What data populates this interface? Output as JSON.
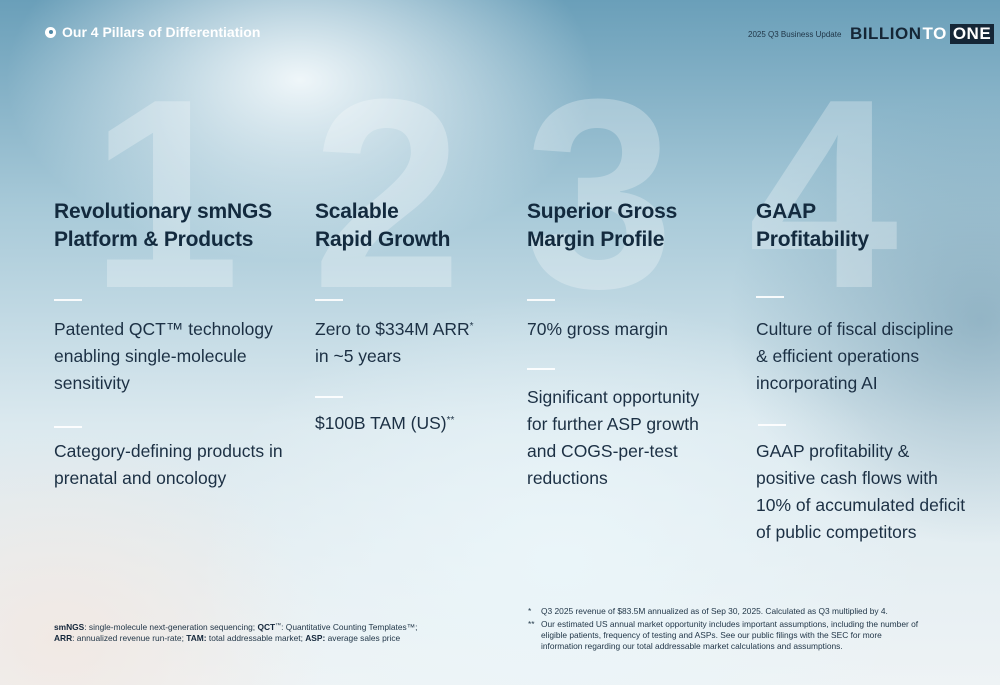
{
  "header": {
    "section_title": "Our 4 Pillars of Differentiation",
    "business_update": "2025 Q3 Business Update",
    "logo": {
      "part1": "BILLION",
      "part2": "TO",
      "part3": "ONE"
    }
  },
  "pillars": [
    {
      "number": "1",
      "heading": [
        "Revolutionary smNGS",
        "Platform & Products"
      ],
      "points": [
        {
          "lines": [
            "Patented QCT™ technology",
            "enabling single-molecule",
            "sensitivity"
          ]
        },
        {
          "lines": [
            "Category-defining products in",
            "prenatal and oncology"
          ]
        }
      ]
    },
    {
      "number": "2",
      "heading": [
        "Scalable",
        "Rapid Growth"
      ],
      "points": [
        {
          "line1": "Zero to $334M ARR",
          "line1_sup": "*",
          "line2": "in ~5 years"
        },
        {
          "text": "$100B TAM (US)",
          "sup": "**"
        }
      ]
    },
    {
      "number": "3",
      "heading": [
        "Superior Gross",
        "Margin Profile"
      ],
      "points": [
        {
          "lines": [
            "70% gross margin"
          ]
        },
        {
          "lines": [
            "Significant opportunity",
            "for further ASP growth",
            "and COGS-per-test",
            "reductions"
          ]
        }
      ]
    },
    {
      "number": "4",
      "heading": [
        "GAAP",
        "Profitability"
      ],
      "points": [
        {
          "lines": [
            "Culture of fiscal discipline",
            "& efficient operations",
            "incorporating AI"
          ]
        },
        {
          "lines": [
            "GAAP profitability &",
            "positive cash flows with",
            "10% of accumulated deficit",
            "of public competitors"
          ]
        }
      ]
    }
  ],
  "footnotes": {
    "glossary": {
      "smngs_term": "smNGS",
      "smngs_def": ": single-molecule next-generation sequencing; ",
      "qct_term": "QCT",
      "qct_tm": "™",
      "qct_def": ": Quantitative Counting Templates™;",
      "arr_term": "ARR",
      "arr_def": ": annualized revenue run-rate; ",
      "tam_term": "TAM:",
      "tam_def": " total addressable market; ",
      "asp_term": "ASP:",
      "asp_def": " average sales price"
    },
    "notes": [
      {
        "mark": "*",
        "lines": [
          "Q3 2025 revenue of $83.5M annualized as of Sep 30, 2025. Calculated as Q3 multiplied by 4."
        ]
      },
      {
        "mark": "**",
        "lines": [
          "Our estimated US annual market opportunity includes important assumptions, including the number of",
          "eligible patients, frequency of testing and ASPs. See our public filings with the SEC for more",
          "information regarding our total addressable market calculations and assumptions."
        ]
      }
    ]
  }
}
